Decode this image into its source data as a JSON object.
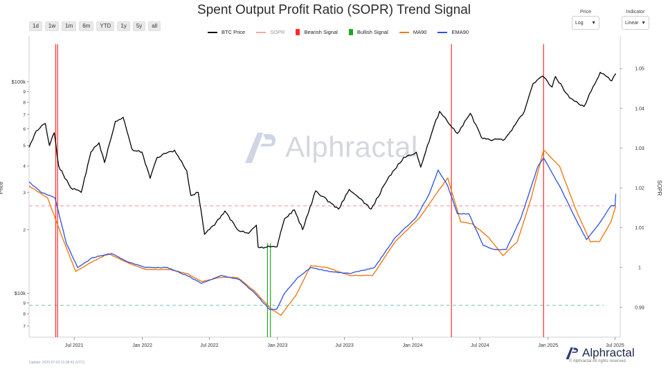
{
  "title": "Spent Output Profit Ratio (SOPR) Trend Signal",
  "range_buttons": [
    "1d",
    "1w",
    "1m",
    "6m",
    "YTD",
    "1y",
    "5y",
    "all"
  ],
  "controls": {
    "price": {
      "label": "Price",
      "value": "Log"
    },
    "indicator": {
      "label": "Indicator",
      "value": "Linear"
    }
  },
  "legend": [
    {
      "name": "BTC Price",
      "color": "#000000",
      "kind": "line"
    },
    {
      "name": "SOPR",
      "color": "#f4a6a6",
      "kind": "line"
    },
    {
      "name": "Bearish Signal",
      "color": "#ff2a2a",
      "kind": "box"
    },
    {
      "name": "Bullish Signal",
      "color": "#22a722",
      "kind": "box"
    },
    {
      "name": "MA90",
      "color": "#f07a10",
      "kind": "line"
    },
    {
      "name": "EMA90",
      "color": "#2a4fe0",
      "kind": "line"
    }
  ],
  "watermark": "Alphractal",
  "brand": {
    "name": "Alphractal",
    "rights": "© Alphractal All rights reserved"
  },
  "update_note": "Update: 2025-07-03 21:08:42 (UTC)",
  "chart_data": {
    "type": "line",
    "title": "Spent Output Profit Ratio (SOPR) Trend Signal",
    "xlabel": "",
    "ylabel_left": "Price",
    "ylabel_right": "SOPR",
    "x_range": [
      "2021-03-01",
      "2025-07-15"
    ],
    "x_ticks": [
      "Jul 2021",
      "Jan 2022",
      "Jul 2022",
      "Jan 2023",
      "Jul 2023",
      "Jan 2024",
      "Jul 2024",
      "Jan 2025",
      "Jul 2025"
    ],
    "y_left": {
      "scale": "log",
      "range": [
        6200,
        160000
      ],
      "major_ticks": [
        "$10k",
        "$100k"
      ],
      "minor_tick_labels": [
        "7",
        "8",
        "9",
        "2",
        "3",
        "4",
        "5",
        "6",
        "7",
        "8",
        "9"
      ]
    },
    "y_right": {
      "scale": "linear",
      "range": [
        0.9825,
        1.0575
      ],
      "ticks": [
        0.99,
        1,
        1.01,
        1.02,
        1.03,
        1.04,
        1.05
      ]
    },
    "thresholds": {
      "bearish_line": 1.0155,
      "bullish_line": 0.9905
    },
    "bearish_signals": [
      "2021-05-12",
      "2021-05-17",
      "2024-04-15",
      "2024-12-20"
    ],
    "bullish_signals": [
      "2022-12-05",
      "2022-12-13"
    ],
    "series": [
      {
        "name": "BTC Price",
        "color": "#000000",
        "points": [
          [
            "2021-03-01",
            49000
          ],
          [
            "2021-03-20",
            58500
          ],
          [
            "2021-04-14",
            63500
          ],
          [
            "2021-04-25",
            50000
          ],
          [
            "2021-05-08",
            57500
          ],
          [
            "2021-05-20",
            40000
          ],
          [
            "2021-06-01",
            36500
          ],
          [
            "2021-06-22",
            31500
          ],
          [
            "2021-07-20",
            30000
          ],
          [
            "2021-08-15",
            46500
          ],
          [
            "2021-09-06",
            51500
          ],
          [
            "2021-09-21",
            41500
          ],
          [
            "2021-10-20",
            65000
          ],
          [
            "2021-11-10",
            68000
          ],
          [
            "2021-12-04",
            48000
          ],
          [
            "2021-12-31",
            46500
          ],
          [
            "2022-01-22",
            35000
          ],
          [
            "2022-02-10",
            44000
          ],
          [
            "2022-03-29",
            47500
          ],
          [
            "2022-05-01",
            38000
          ],
          [
            "2022-05-12",
            29000
          ],
          [
            "2022-06-01",
            30000
          ],
          [
            "2022-06-18",
            19000
          ],
          [
            "2022-07-15",
            21000
          ],
          [
            "2022-08-12",
            24500
          ],
          [
            "2022-09-15",
            20000
          ],
          [
            "2022-10-15",
            19200
          ],
          [
            "2022-11-05",
            21000
          ],
          [
            "2022-11-10",
            16500
          ],
          [
            "2022-12-31",
            16600
          ],
          [
            "2023-01-20",
            22500
          ],
          [
            "2023-02-16",
            24800
          ],
          [
            "2023-03-10",
            20000
          ],
          [
            "2023-04-14",
            30500
          ],
          [
            "2023-06-15",
            25000
          ],
          [
            "2023-07-14",
            31000
          ],
          [
            "2023-09-11",
            25000
          ],
          [
            "2023-10-25",
            34500
          ],
          [
            "2023-12-08",
            44000
          ],
          [
            "2024-01-11",
            46500
          ],
          [
            "2024-01-23",
            39500
          ],
          [
            "2024-02-28",
            62000
          ],
          [
            "2024-03-14",
            72500
          ],
          [
            "2024-05-01",
            57000
          ],
          [
            "2024-06-05",
            71000
          ],
          [
            "2024-07-05",
            54500
          ],
          [
            "2024-08-05",
            53000
          ],
          [
            "2024-09-06",
            53500
          ],
          [
            "2024-10-29",
            72500
          ],
          [
            "2024-11-22",
            98500
          ],
          [
            "2024-12-17",
            106500
          ],
          [
            "2025-01-12",
            94500
          ],
          [
            "2025-01-21",
            106000
          ],
          [
            "2025-02-28",
            84000
          ],
          [
            "2025-04-08",
            76500
          ],
          [
            "2025-05-22",
            111000
          ],
          [
            "2025-06-22",
            101000
          ],
          [
            "2025-07-03",
            109500
          ]
        ]
      },
      {
        "name": "MA90",
        "color": "#f07a10",
        "points": [
          [
            "2021-03-01",
            1.0205
          ],
          [
            "2021-04-20",
            1.0175
          ],
          [
            "2021-06-01",
            1.007
          ],
          [
            "2021-07-05",
            0.999
          ],
          [
            "2021-08-20",
            1.0015
          ],
          [
            "2021-10-01",
            1.0035
          ],
          [
            "2021-11-15",
            1.0015
          ],
          [
            "2022-01-10",
            0.9995
          ],
          [
            "2022-03-15",
            0.9995
          ],
          [
            "2022-05-01",
            0.9985
          ],
          [
            "2022-06-10",
            0.9965
          ],
          [
            "2022-08-01",
            0.9975
          ],
          [
            "2022-09-15",
            0.9975
          ],
          [
            "2022-11-01",
            0.994
          ],
          [
            "2022-12-15",
            0.9895
          ],
          [
            "2023-01-10",
            0.988
          ],
          [
            "2023-02-20",
            0.993
          ],
          [
            "2023-04-01",
            1.0005
          ],
          [
            "2023-05-15",
            1.0
          ],
          [
            "2023-07-15",
            0.998
          ],
          [
            "2023-09-15",
            0.998
          ],
          [
            "2023-11-15",
            1.0065
          ],
          [
            "2024-01-20",
            1.0125
          ],
          [
            "2024-03-05",
            1.0185
          ],
          [
            "2024-04-05",
            1.0225
          ],
          [
            "2024-05-10",
            1.0115
          ],
          [
            "2024-06-10",
            1.011
          ],
          [
            "2024-07-25",
            1.0075
          ],
          [
            "2024-09-01",
            1.003
          ],
          [
            "2024-10-10",
            1.0065
          ],
          [
            "2024-11-15",
            1.017
          ],
          [
            "2024-12-20",
            1.0295
          ],
          [
            "2025-02-01",
            1.0255
          ],
          [
            "2025-03-15",
            1.015
          ],
          [
            "2025-04-25",
            1.0065
          ],
          [
            "2025-05-20",
            1.0065
          ],
          [
            "2025-06-20",
            1.0115
          ],
          [
            "2025-07-03",
            1.0155
          ]
        ]
      },
      {
        "name": "EMA90",
        "color": "#2a4fe0",
        "points": [
          [
            "2021-03-01",
            1.0215
          ],
          [
            "2021-04-01",
            1.019
          ],
          [
            "2021-05-10",
            1.0175
          ],
          [
            "2021-06-10",
            1.006
          ],
          [
            "2021-07-10",
            1.0
          ],
          [
            "2021-08-20",
            1.0025
          ],
          [
            "2021-10-10",
            1.0035
          ],
          [
            "2021-11-20",
            1.0015
          ],
          [
            "2022-01-10",
            1.0
          ],
          [
            "2022-03-10",
            1.0
          ],
          [
            "2022-05-01",
            0.998
          ],
          [
            "2022-06-10",
            0.996
          ],
          [
            "2022-08-01",
            0.998
          ],
          [
            "2022-09-20",
            0.997
          ],
          [
            "2022-11-01",
            0.9935
          ],
          [
            "2022-12-10",
            0.9895
          ],
          [
            "2022-12-30",
            0.9895
          ],
          [
            "2023-01-20",
            0.9935
          ],
          [
            "2023-02-25",
            0.9975
          ],
          [
            "2023-04-01",
            1.0
          ],
          [
            "2023-05-20",
            0.999
          ],
          [
            "2023-07-15",
            0.9985
          ],
          [
            "2023-09-20",
            1.0
          ],
          [
            "2023-11-15",
            1.0075
          ],
          [
            "2024-01-10",
            1.0125
          ],
          [
            "2024-02-15",
            1.0185
          ],
          [
            "2024-03-10",
            1.0245
          ],
          [
            "2024-04-05",
            1.0205
          ],
          [
            "2024-05-01",
            1.0135
          ],
          [
            "2024-06-01",
            1.0135
          ],
          [
            "2024-07-10",
            1.0055
          ],
          [
            "2024-08-10",
            1.0045
          ],
          [
            "2024-09-10",
            1.0045
          ],
          [
            "2024-10-20",
            1.0125
          ],
          [
            "2024-12-05",
            1.0255
          ],
          [
            "2024-12-20",
            1.0275
          ],
          [
            "2025-02-01",
            1.0205
          ],
          [
            "2025-03-15",
            1.0125
          ],
          [
            "2025-04-15",
            1.007
          ],
          [
            "2025-05-15",
            1.0105
          ],
          [
            "2025-06-20",
            1.0155
          ],
          [
            "2025-07-01",
            1.0155
          ],
          [
            "2025-07-03",
            1.0185
          ]
        ]
      }
    ]
  }
}
